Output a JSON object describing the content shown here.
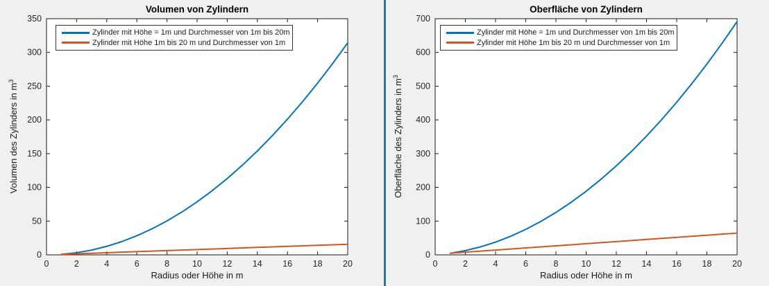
{
  "figure": {
    "background": "#f0f0f0",
    "separator_color": "#35719f",
    "axis_color": "#1a1a1a",
    "tick_label_color": "#262626",
    "plot_background": "#ffffff"
  },
  "chart_data": [
    {
      "type": "line",
      "title": "Volumen von Zylindern",
      "xlabel": "Radius oder Höhe in m",
      "ylabel": "Volumen des Zylinders in m",
      "ylabel_sup": "3",
      "xlim": [
        0,
        20
      ],
      "ylim": [
        0,
        350
      ],
      "xticks": [
        0,
        2,
        4,
        6,
        8,
        10,
        12,
        14,
        16,
        18,
        20
      ],
      "yticks": [
        0,
        50,
        100,
        150,
        200,
        250,
        300,
        350
      ],
      "grid": false,
      "legend_position": "top-left-inside",
      "x": [
        1,
        2,
        3,
        4,
        5,
        6,
        7,
        8,
        9,
        10,
        11,
        12,
        13,
        14,
        15,
        16,
        17,
        18,
        19,
        20
      ],
      "series": [
        {
          "name": "Zylinder mit Höhe = 1m und Durchmesser von 1m bis 20m",
          "color": "#0072BD",
          "values": [
            0.79,
            3.14,
            7.07,
            12.57,
            19.63,
            28.27,
            38.48,
            50.27,
            63.62,
            78.54,
            95.03,
            113.1,
            132.73,
            153.94,
            176.71,
            201.06,
            226.98,
            254.47,
            283.53,
            314.16
          ]
        },
        {
          "name": "Zylinder mit Höhe 1m bis 20 m und Durchmesser von 1m",
          "color": "#D95319",
          "values": [
            0.79,
            1.57,
            2.36,
            3.14,
            3.93,
            4.71,
            5.5,
            6.28,
            7.07,
            7.85,
            8.64,
            9.42,
            10.21,
            11.0,
            11.78,
            12.57,
            13.35,
            14.14,
            14.92,
            15.71
          ]
        }
      ]
    },
    {
      "type": "line",
      "title": "Oberfläche von Zylindern",
      "xlabel": "Radius oder Höhe in m",
      "ylabel": "Oberfläche des Zylinders in m",
      "ylabel_sup": "3",
      "xlim": [
        0,
        20
      ],
      "ylim": [
        0,
        700
      ],
      "xticks": [
        0,
        2,
        4,
        6,
        8,
        10,
        12,
        14,
        16,
        18,
        20
      ],
      "yticks": [
        0,
        100,
        200,
        300,
        400,
        500,
        600,
        700
      ],
      "grid": false,
      "legend_position": "top-left-inside",
      "x": [
        1,
        2,
        3,
        4,
        5,
        6,
        7,
        8,
        9,
        10,
        11,
        12,
        13,
        14,
        15,
        16,
        17,
        18,
        19,
        20
      ],
      "series": [
        {
          "name": "Zylinder mit Höhe = 1m und Durchmesser von 1m bis 20m",
          "color": "#0072BD",
          "values": [
            4.71,
            12.57,
            23.56,
            37.7,
            54.98,
            75.4,
            98.96,
            125.66,
            155.51,
            188.5,
            224.62,
            263.89,
            306.31,
            351.86,
            400.55,
            452.39,
            507.37,
            565.49,
            626.75,
            691.15
          ]
        },
        {
          "name": "Zylinder mit Höhe 1m bis 20 m und Durchmesser von 1m",
          "color": "#D95319",
          "values": [
            4.71,
            7.85,
            11.0,
            14.14,
            17.28,
            20.42,
            23.56,
            26.7,
            29.85,
            32.99,
            36.13,
            39.27,
            42.41,
            45.55,
            48.69,
            51.84,
            54.98,
            58.12,
            61.26,
            64.4
          ]
        }
      ]
    }
  ]
}
